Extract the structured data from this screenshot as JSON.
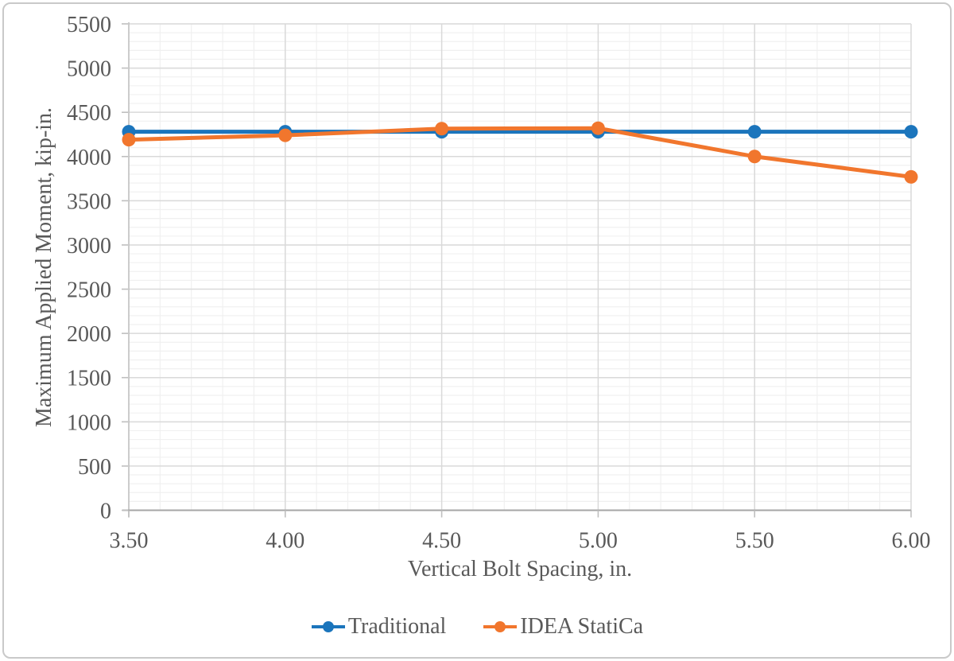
{
  "figure": {
    "background_color": "#ffffff",
    "border_color": "#c9c9c9"
  },
  "chart_data": {
    "type": "line",
    "title": "",
    "xlabel": "Vertical Bolt Spacing, in.",
    "ylabel": "Maximum Applied Moment, kip-in.",
    "x": [
      3.5,
      4.0,
      4.5,
      5.0,
      5.5,
      6.0
    ],
    "series": [
      {
        "name": "Traditional",
        "color": "#1b75bc",
        "values": [
          4280,
          4280,
          4280,
          4280,
          4280,
          4280
        ]
      },
      {
        "name": "IDEA StatiCa",
        "color": "#f1762d",
        "values": [
          4190,
          4240,
          4315,
          4320,
          4000,
          3770
        ]
      }
    ],
    "xlim": [
      3.5,
      6.0
    ],
    "ylim": [
      0,
      5500
    ],
    "x_tick_labels": [
      "3.50",
      "4.00",
      "4.50",
      "5.00",
      "5.50",
      "6.00"
    ],
    "y_tick_labels": [
      "0",
      "500",
      "1000",
      "1500",
      "2000",
      "2500",
      "3000",
      "3500",
      "4000",
      "4500",
      "5000",
      "5500"
    ],
    "x_major_step": 0.5,
    "x_minor_step": 0.1,
    "y_major_step": 500,
    "y_minor_step": 100,
    "grid": {
      "on": true,
      "major_color": "#d9d9d9",
      "minor_color": "#f0f0f0"
    },
    "axis_color": "#bfbfbf",
    "x_axis_line_color": "#a6a6a6",
    "tick_label_color": "#595959",
    "marker": "circle",
    "legend_position": "bottom"
  }
}
